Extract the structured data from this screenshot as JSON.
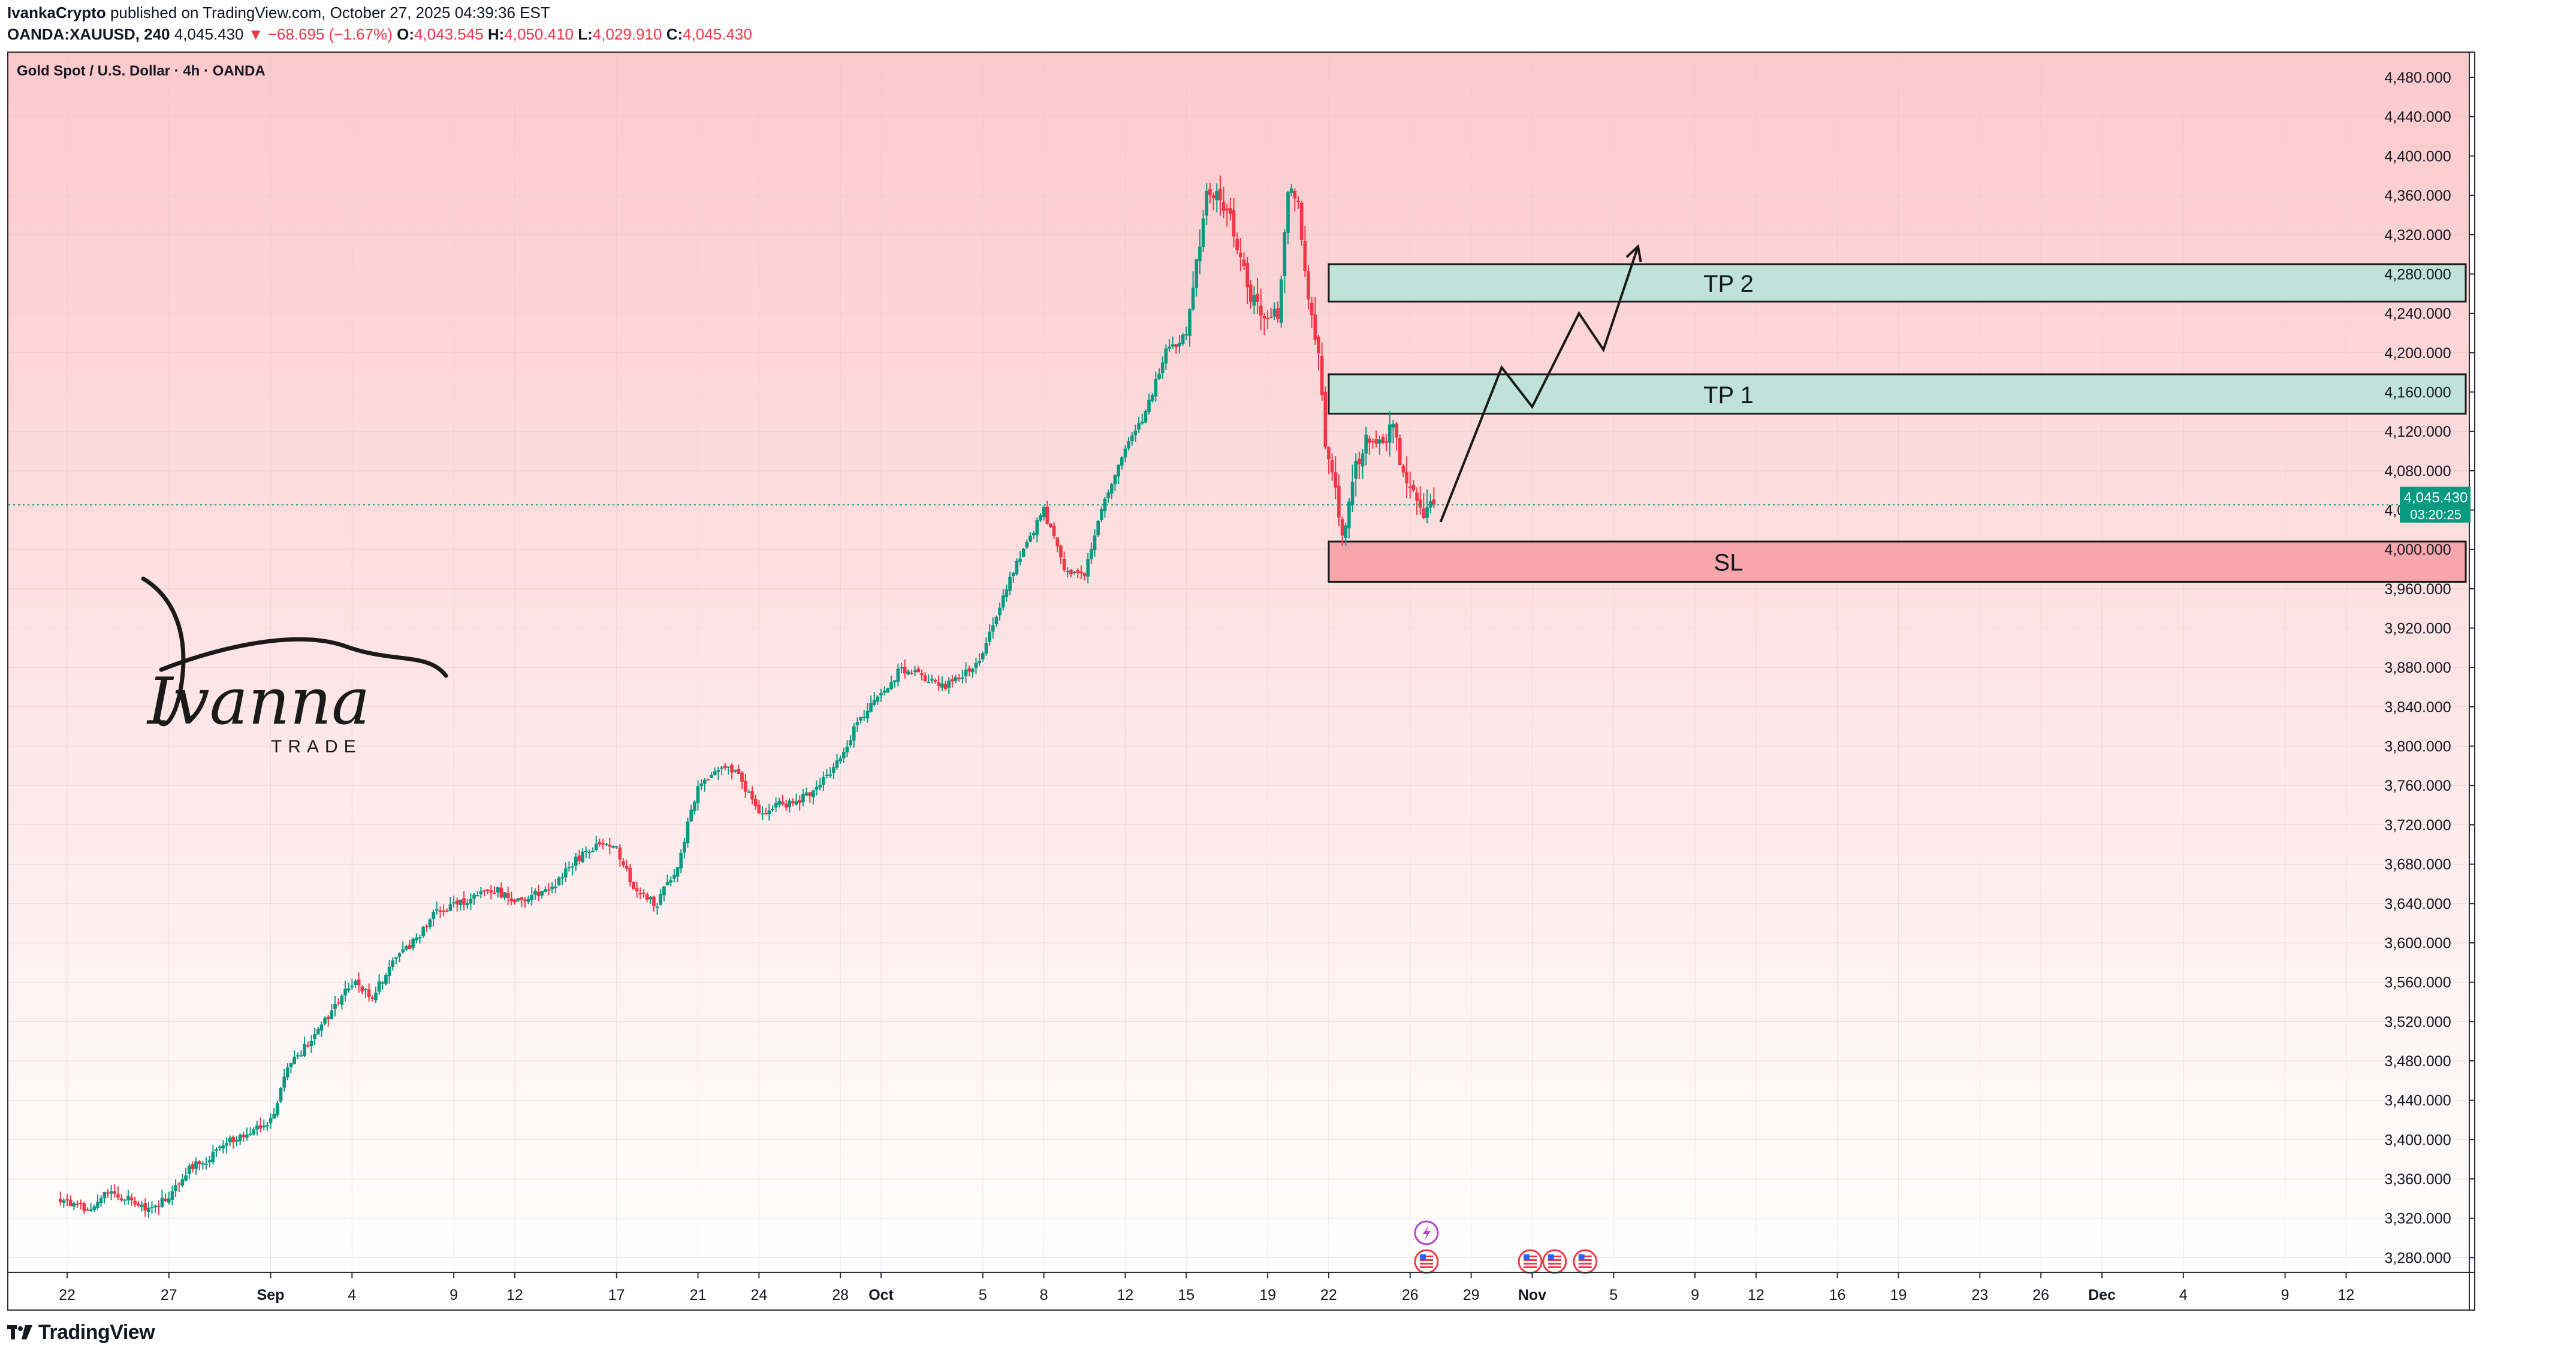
{
  "header": {
    "line1": {
      "author": "IvankaCrypto",
      "text": " published on TradingView.com, October 27, 2025 04:39:36 EST"
    },
    "line2": {
      "symbol": "OANDA:XAUUSD, 240",
      "last": "4,045.430",
      "change": "▼ −68.695 (−1.67%)",
      "o_label": "O:",
      "o_value": "4,043.545",
      "h_label": "H:",
      "h_value": "4,050.410",
      "l_label": "L:",
      "l_value": "4,029.910",
      "c_label": "C:",
      "c_value": "4,045.430"
    }
  },
  "footer": {
    "logo_text": "TradingView"
  },
  "watermark": {
    "script": "Ivanna",
    "subtitle": "TRADE"
  },
  "colors": {
    "up": "#089981",
    "down": "#f23645",
    "bg_top": "#fcc9cb",
    "bg_bottom": "#ffffff",
    "tp_fill": "#bfe3d8",
    "sl_fill": "#f7a6ab",
    "price_label": "#089981",
    "event_icon": "#f23645",
    "event_icon2": "#b342c9"
  },
  "chart_data": {
    "type": "candlestick",
    "title": "Gold Spot / U.S. Dollar · 4h · OANDA",
    "ylim": [
      3265,
      4505
    ],
    "y_ticks": [
      3280,
      3320,
      3360,
      3400,
      3440,
      3480,
      3520,
      3560,
      3600,
      3640,
      3680,
      3720,
      3760,
      3800,
      3840,
      3880,
      3920,
      3960,
      4000,
      4040,
      4080,
      4120,
      4160,
      4200,
      4240,
      4280,
      4320,
      4360,
      4400,
      4440,
      4480
    ],
    "y_tick_labels": [
      "3,280.000",
      "3,320.000",
      "3,360.000",
      "3,400.000",
      "3,440.000",
      "3,480.000",
      "3,520.000",
      "3,560.000",
      "3,600.000",
      "3,640.000",
      "3,680.000",
      "3,720.000",
      "3,760.000",
      "3,800.000",
      "3,840.000",
      "3,880.000",
      "3,920.000",
      "3,960.000",
      "4,000.000",
      "4,040.000",
      "4,080.000",
      "4,120.000",
      "4,160.000",
      "4,200.000",
      "4,240.000",
      "4,280.000",
      "4,320.000",
      "4,360.000",
      "4,400.000",
      "4,440.000",
      "4,480.000"
    ],
    "x_labels": [
      "22",
      "27",
      "Sep",
      "4",
      "9",
      "12",
      "17",
      "21",
      "24",
      "28",
      "Oct",
      "5",
      "8",
      "12",
      "15",
      "19",
      "22",
      "26",
      "29",
      "Nov",
      "5",
      "9",
      "12",
      "16",
      "19",
      "23",
      "26",
      "Dec",
      "4",
      "9",
      "12"
    ],
    "x_label_days": [
      -1,
      4,
      9,
      13,
      18,
      21,
      26,
      30,
      33,
      37,
      39,
      44,
      47,
      51,
      54,
      58,
      61,
      65,
      68,
      71,
      75,
      79,
      82,
      86,
      89,
      93,
      96,
      99,
      103,
      108,
      111
    ],
    "x_bold_labels": [
      "Sep",
      "Oct",
      "Nov",
      "Dec"
    ],
    "day_axis": "day numbers relative to Aug 23, 2025 = 0 (Sep 1 = 9, Oct 1 = 39, Nov 1 = 70)",
    "price_path": [
      [
        -1.5,
        3340
      ],
      [
        0,
        3330
      ],
      [
        1,
        3345
      ],
      [
        2,
        3340
      ],
      [
        3,
        3330
      ],
      [
        4,
        3340
      ],
      [
        5,
        3370
      ],
      [
        6,
        3380
      ],
      [
        7,
        3400
      ],
      [
        8,
        3410
      ],
      [
        9,
        3420
      ],
      [
        10,
        3480
      ],
      [
        11,
        3500
      ],
      [
        12,
        3530
      ],
      [
        13,
        3560
      ],
      [
        14,
        3545
      ],
      [
        15,
        3580
      ],
      [
        16,
        3600
      ],
      [
        17,
        3630
      ],
      [
        18,
        3640
      ],
      [
        19,
        3645
      ],
      [
        20,
        3655
      ],
      [
        21,
        3640
      ],
      [
        22,
        3650
      ],
      [
        23,
        3660
      ],
      [
        24,
        3685
      ],
      [
        25,
        3700
      ],
      [
        26,
        3695
      ],
      [
        27,
        3650
      ],
      [
        28,
        3640
      ],
      [
        29,
        3680
      ],
      [
        30,
        3760
      ],
      [
        31,
        3780
      ],
      [
        32,
        3770
      ],
      [
        33,
        3730
      ],
      [
        34,
        3740
      ],
      [
        35,
        3745
      ],
      [
        36,
        3760
      ],
      [
        37,
        3790
      ],
      [
        38,
        3830
      ],
      [
        39,
        3850
      ],
      [
        40,
        3880
      ],
      [
        41,
        3870
      ],
      [
        42,
        3860
      ],
      [
        43,
        3870
      ],
      [
        44,
        3895
      ],
      [
        45,
        3955
      ],
      [
        46,
        4000
      ],
      [
        47,
        4040
      ],
      [
        48,
        3980
      ],
      [
        49,
        3975
      ],
      [
        50,
        4050
      ],
      [
        51,
        4100
      ],
      [
        52,
        4140
      ],
      [
        53,
        4200
      ],
      [
        54,
        4220
      ],
      [
        55,
        4360
      ],
      [
        56,
        4350
      ],
      [
        57,
        4265
      ],
      [
        58,
        4230
      ],
      [
        58.6,
        4245
      ],
      [
        59,
        4370
      ],
      [
        59.5,
        4350
      ],
      [
        60,
        4250
      ],
      [
        60.5,
        4200
      ],
      [
        60.8,
        4115
      ],
      [
        61.3,
        4060
      ],
      [
        61.7,
        4010
      ],
      [
        62.2,
        4080
      ],
      [
        62.7,
        4105
      ],
      [
        63.2,
        4120
      ],
      [
        63.7,
        4110
      ],
      [
        64.2,
        4130
      ],
      [
        64.7,
        4070
      ],
      [
        65.2,
        4060
      ],
      [
        65.7,
        4040
      ],
      [
        66.2,
        4045
      ]
    ],
    "annotation_zones": [
      {
        "label": "TP 2",
        "from_day": 61,
        "to": "right edge",
        "top": 4290,
        "bottom": 4252
      },
      {
        "label": "TP 1",
        "from_day": 61,
        "to": "right edge",
        "top": 4178,
        "bottom": 4138
      },
      {
        "label": "SL",
        "from_day": 61,
        "to": "right edge",
        "top": 4008,
        "bottom": 3967
      }
    ],
    "projection_path": [
      [
        66.5,
        4028
      ],
      [
        69.5,
        4185
      ],
      [
        71,
        4145
      ],
      [
        73.3,
        4240
      ],
      [
        74.5,
        4203
      ],
      [
        76.2,
        4308
      ]
    ],
    "current_price": {
      "value": 4045.43,
      "label": "4,045.430",
      "countdown": "03:20:25"
    },
    "event_markers": [
      {
        "day": 65.8,
        "kind": "lightning"
      },
      {
        "day": 65.8,
        "kind": "flag-us"
      },
      {
        "day": 70.9,
        "kind": "flag-us"
      },
      {
        "day": 72.1,
        "kind": "flag-us"
      },
      {
        "day": 73.6,
        "kind": "flag-us"
      }
    ]
  }
}
